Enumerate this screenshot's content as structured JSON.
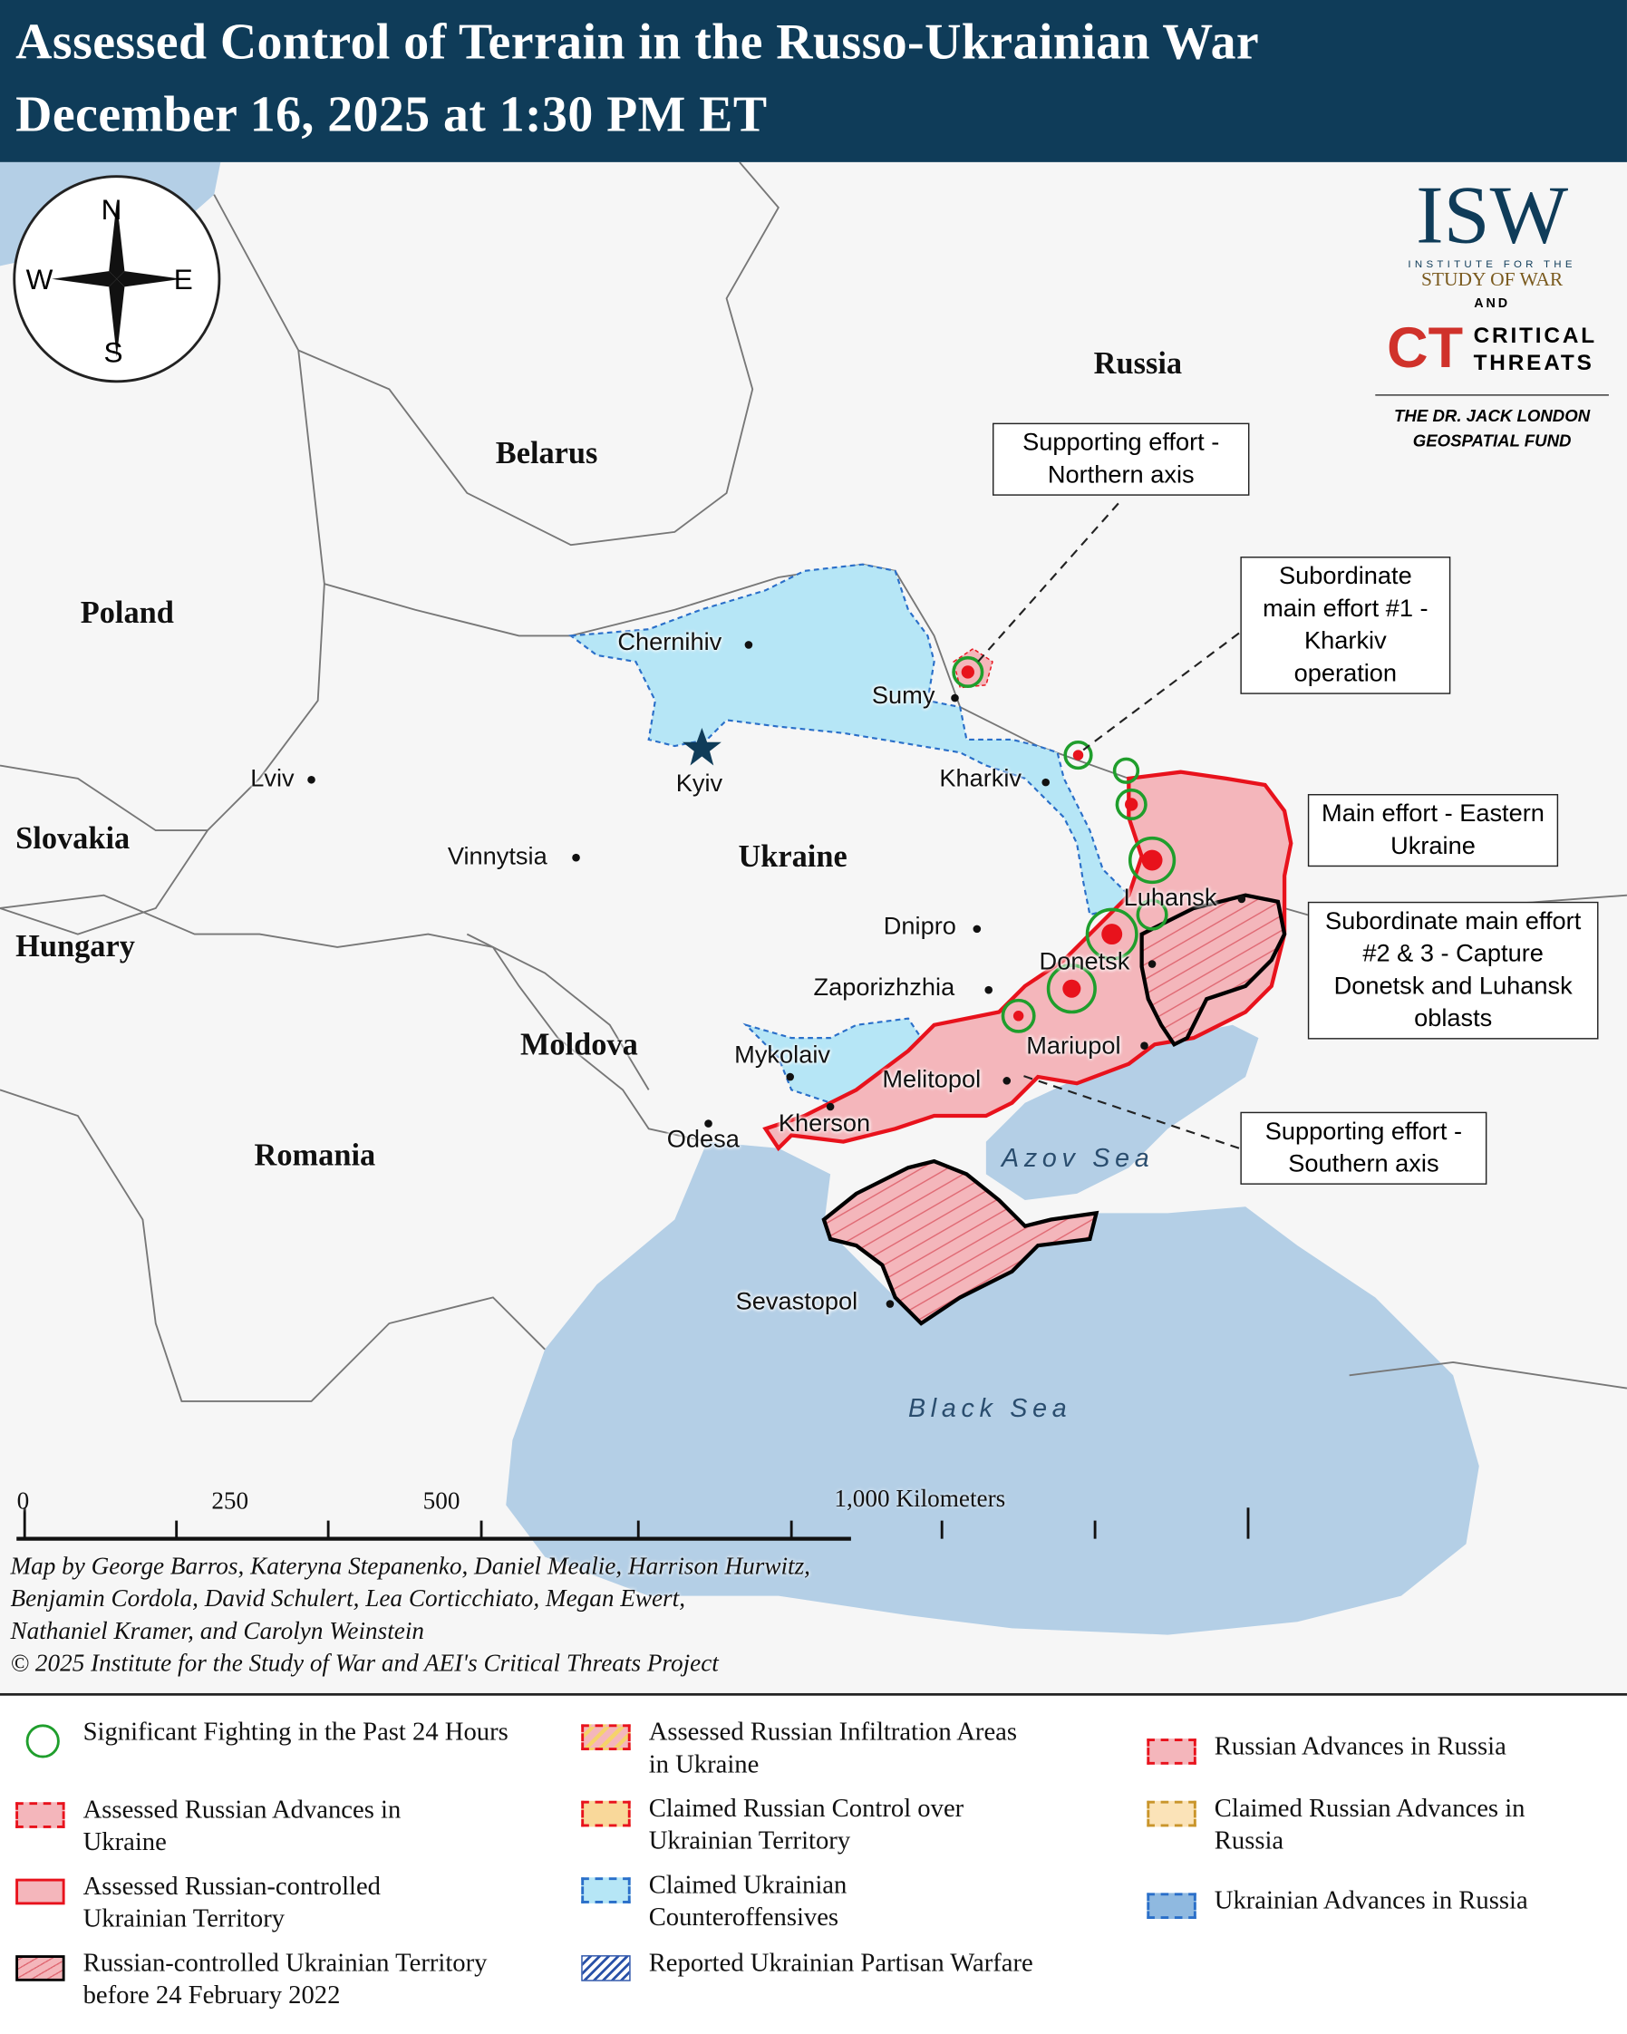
{
  "header": {
    "title_line1": "Assessed Control of Terrain in the Russo-Ukrainian War",
    "title_line2": "December 16, 2025 at 1:30 PM ET"
  },
  "colors": {
    "header_bg": "#0f3c59",
    "sea": "#b4cfe6",
    "russian_control": "#f4b6bb",
    "russian_border": "#e8121c",
    "ukrainian_counteroffensive": "#b6e6f6",
    "fighting_circle": "#1f9e2c",
    "pre_2022_border": "#000000"
  },
  "compass": {
    "n": "N",
    "s": "S",
    "e": "E",
    "w": "W",
    "icon": "compass-rose-icon"
  },
  "logo": {
    "isw": "ISW",
    "isw_sub1": "INSTITUTE FOR THE",
    "isw_sub2": "STUDY OF WAR",
    "and": "AND",
    "ct": "CT",
    "ct_line1": "CRITICAL",
    "ct_line2": "THREATS",
    "fund_line1": "THE DR. JACK LONDON",
    "fund_line2": "GEOSPATIAL FUND"
  },
  "countries": {
    "russia": "Russia",
    "belarus": "Belarus",
    "poland": "Poland",
    "ukraine": "Ukraine",
    "slovakia": "Slovakia",
    "hungary": "Hungary",
    "moldova": "Moldova",
    "romania": "Romania"
  },
  "cities": {
    "chernihiv": "Chernihiv",
    "sumy": "Sumy",
    "kyiv": "Kyiv",
    "kharkiv": "Kharkiv",
    "lviv": "Lviv",
    "vinnytsia": "Vinnytsia",
    "dnipro": "Dnipro",
    "luhansk": "Luhansk",
    "donetsk": "Donetsk",
    "zaporizhzhia": "Zaporizhzhia",
    "mariupol": "Mariupol",
    "mykolaiv": "Mykolaiv",
    "melitopol": "Melitopol",
    "kherson": "Kherson",
    "odesa": "Odesa",
    "sevastopol": "Sevastopol"
  },
  "seas": {
    "azov": "Azov Sea",
    "black": "Black Sea"
  },
  "callouts": {
    "northern": "Supporting effort - Northern axis",
    "kharkiv": "Subordinate main effort #1 - Kharkiv operation",
    "eastern": "Main effort - Eastern Ukraine",
    "donetsk_luhansk": "Subordinate main effort #2 & 3 - Capture Donetsk and Luhansk oblasts",
    "southern": "Supporting effort - Southern axis"
  },
  "scale": {
    "t0": "0",
    "t250": "250",
    "t500": "500",
    "t1000": "1,000 Kilometers"
  },
  "credits": {
    "line1": "Map by George Barros, Kateryna Stepanenko, Daniel Mealie, Harrison Hurwitz,",
    "line2": "Benjamin Cordola, David Schulert, Lea Corticchiato, Megan Ewert,",
    "line3": "Nathaniel Kramer, and Carolyn Weinstein",
    "line4": "© 2025 Institute for the Study of War and AEI's Critical Threats Project"
  },
  "legend": [
    {
      "label": "Significant Fighting in the Past 24 Hours"
    },
    {
      "label": "Assessed Russian Advances in Ukraine"
    },
    {
      "label": "Assessed Russian-controlled Ukrainian Territory"
    },
    {
      "label": "Russian-controlled Ukrainian Territory before 24 February 2022"
    },
    {
      "label": "Assessed Russian Infiltration Areas in Ukraine"
    },
    {
      "label": "Claimed Russian Control over Ukrainian Territory"
    },
    {
      "label": "Claimed Ukrainian Counteroffensives"
    },
    {
      "label": "Reported Ukrainian Partisan Warfare"
    },
    {
      "label": "Russian Advances in Russia"
    },
    {
      "label": "Claimed Russian Advances in Russia"
    },
    {
      "label": "Ukrainian Advances in Russia"
    }
  ]
}
